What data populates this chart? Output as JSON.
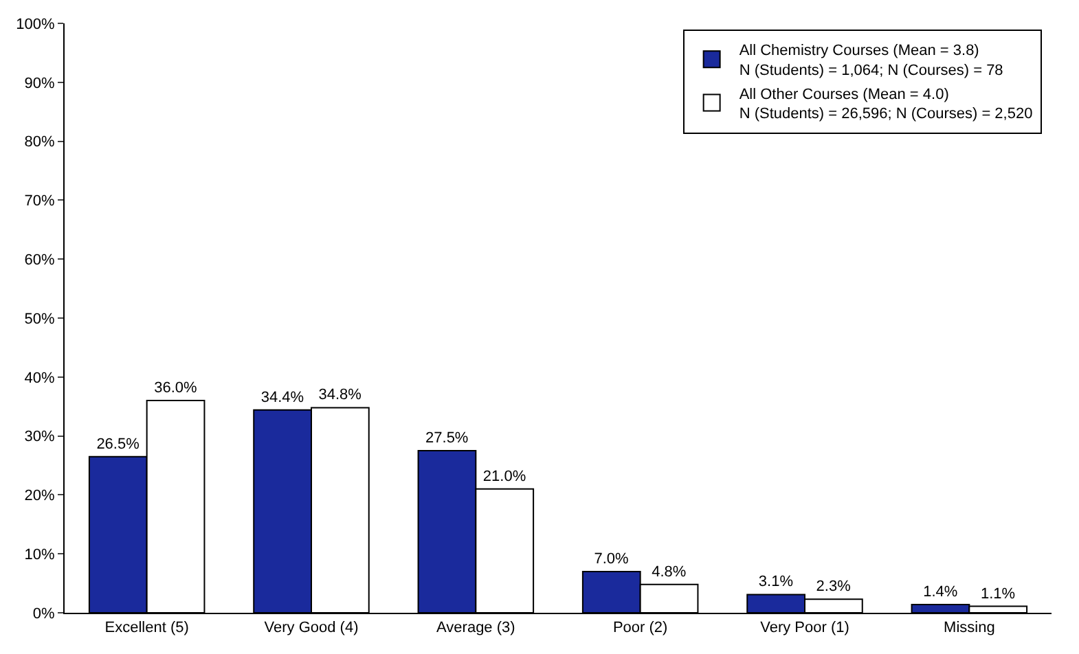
{
  "chart_data": {
    "type": "bar",
    "categories": [
      "Excellent (5)",
      "Very Good (4)",
      "Average (3)",
      "Poor (2)",
      "Very Poor (1)",
      "Missing"
    ],
    "series": [
      {
        "name": "All Chemistry Courses (Mean = 3.8)\nN (Students) = 1,064; N (Courses) = 78",
        "color": "#1a2a9c",
        "values": [
          26.5,
          34.4,
          27.5,
          7.0,
          3.1,
          1.4
        ],
        "value_labels": [
          "26.5%",
          "34.4%",
          "27.5%",
          "7.0%",
          "3.1%",
          "1.4%"
        ]
      },
      {
        "name": "All Other Courses (Mean = 4.0)\nN (Students) = 26,596; N (Courses) = 2,520",
        "color": "#ffffff",
        "values": [
          36.0,
          34.8,
          21.0,
          4.8,
          2.3,
          1.1
        ],
        "value_labels": [
          "36.0%",
          "34.8%",
          "21.0%",
          "4.8%",
          "2.3%",
          "1.1%"
        ]
      }
    ],
    "ylim": [
      0,
      100
    ],
    "yticks": [
      {
        "value": 0,
        "label": "0%"
      },
      {
        "value": 10,
        "label": "10%"
      },
      {
        "value": 20,
        "label": "20%"
      },
      {
        "value": 30,
        "label": "30%"
      },
      {
        "value": 40,
        "label": "40%"
      },
      {
        "value": 50,
        "label": "50%"
      },
      {
        "value": 60,
        "label": "60%"
      },
      {
        "value": 70,
        "label": "70%"
      },
      {
        "value": 80,
        "label": "80%"
      },
      {
        "value": 90,
        "label": "90%"
      },
      {
        "value": 100,
        "label": "100%"
      }
    ],
    "legend": "top right"
  }
}
